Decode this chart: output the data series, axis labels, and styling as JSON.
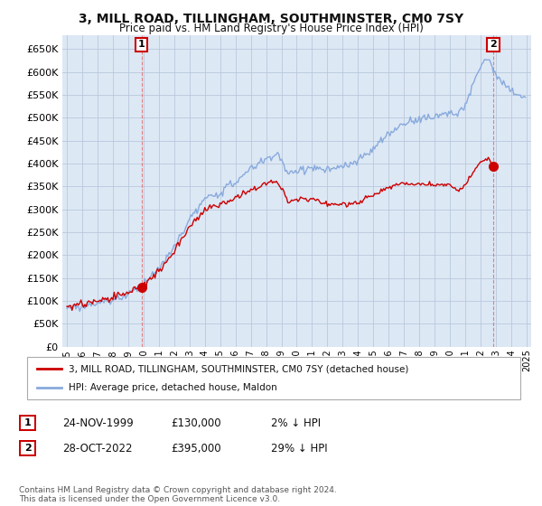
{
  "title": "3, MILL ROAD, TILLINGHAM, SOUTHMINSTER, CM0 7SY",
  "subtitle": "Price paid vs. HM Land Registry's House Price Index (HPI)",
  "property_label": "3, MILL ROAD, TILLINGHAM, SOUTHMINSTER, CM0 7SY (detached house)",
  "hpi_label": "HPI: Average price, detached house, Maldon",
  "annotation1": {
    "num": "1",
    "date": "24-NOV-1999",
    "price": "£130,000",
    "note": "2% ↓ HPI"
  },
  "annotation2": {
    "num": "2",
    "date": "28-OCT-2022",
    "price": "£395,000",
    "note": "29% ↓ HPI"
  },
  "copyright": "Contains HM Land Registry data © Crown copyright and database right 2024.\nThis data is licensed under the Open Government Licence v3.0.",
  "line_color_property": "#cc0000",
  "line_color_hpi": "#88aadd",
  "marker_color": "#cc0000",
  "vline_color": "#dd6666",
  "background_color": "#ffffff",
  "plot_bg_color": "#dde8f5",
  "grid_color": "#b8c8dc",
  "ylim": [
    0,
    680000
  ],
  "xlim_left": 1994.7,
  "xlim_right": 2025.3,
  "sale1_year": 1999.87,
  "sale1_price": 130000,
  "sale2_year": 2022.83,
  "sale2_price": 395000
}
